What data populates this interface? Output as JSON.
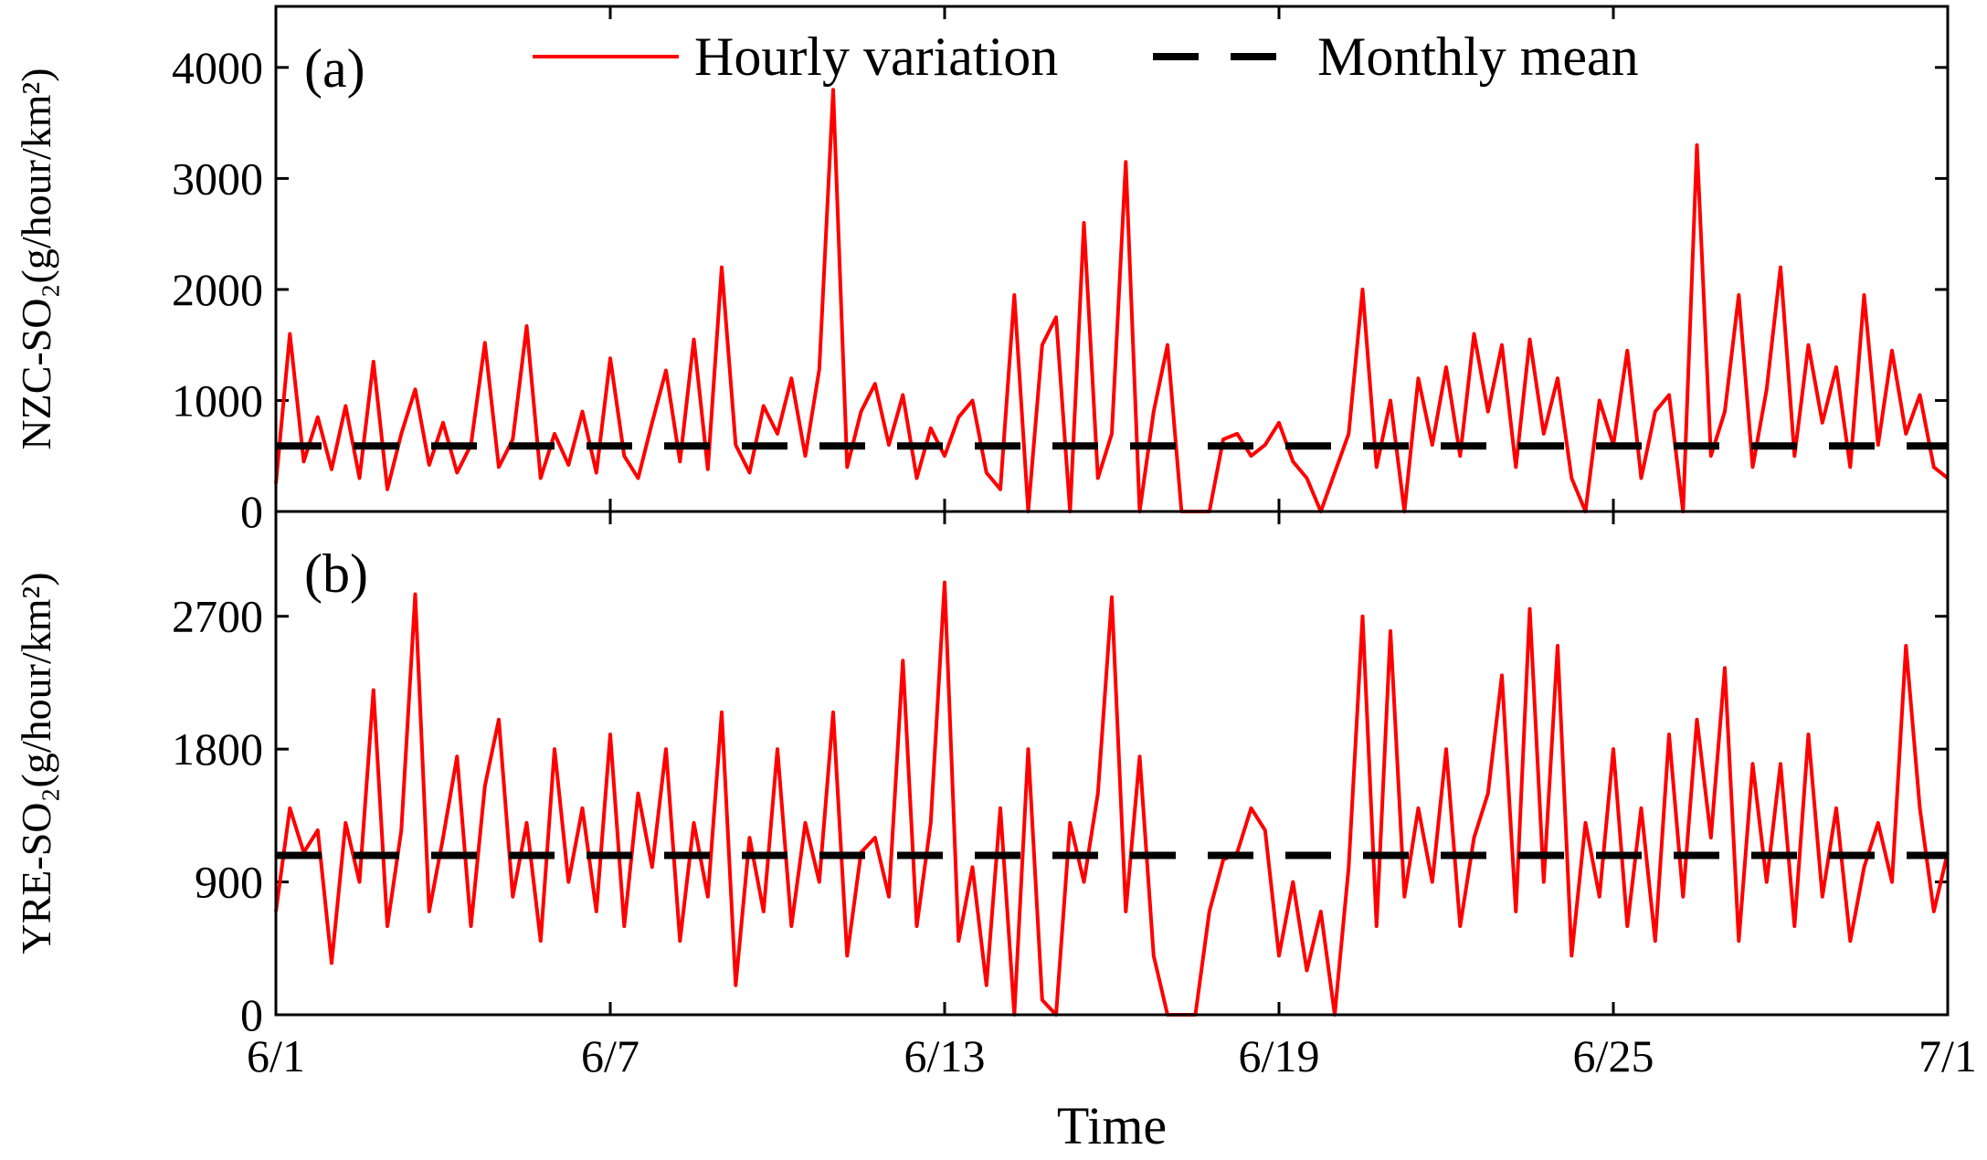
{
  "chart_data": [
    {
      "type": "line",
      "panel_label": "(a)",
      "ylabel": "NZC-SO₂(g/hour/km²)",
      "xlim": [
        0,
        30
      ],
      "ylim": [
        0,
        4550
      ],
      "yticks": [
        0,
        1000,
        2000,
        3000,
        4000
      ],
      "x": [
        0,
        0.25,
        0.5,
        0.75,
        1,
        1.25,
        1.5,
        1.75,
        2,
        2.25,
        2.5,
        2.75,
        3,
        3.25,
        3.5,
        3.75,
        4,
        4.25,
        4.5,
        4.75,
        5,
        5.25,
        5.5,
        5.75,
        6,
        6.25,
        6.5,
        6.75,
        7,
        7.25,
        7.5,
        7.75,
        8,
        8.25,
        8.5,
        8.75,
        9,
        9.25,
        9.5,
        9.75,
        10,
        10.25,
        10.5,
        10.75,
        11,
        11.25,
        11.5,
        11.75,
        12,
        12.25,
        12.5,
        12.75,
        13,
        13.25,
        13.5,
        13.75,
        14,
        14.25,
        14.5,
        14.75,
        15,
        15.25,
        15.5,
        15.75,
        16,
        16.25,
        16.5,
        16.75,
        17,
        17.25,
        17.5,
        17.75,
        18,
        18.25,
        18.5,
        18.75,
        19,
        19.25,
        19.5,
        19.75,
        20,
        20.25,
        20.5,
        20.75,
        21,
        21.25,
        21.5,
        21.75,
        22,
        22.25,
        22.5,
        22.75,
        23,
        23.25,
        23.5,
        23.75,
        24,
        24.25,
        24.5,
        24.75,
        25,
        25.25,
        25.5,
        25.75,
        26,
        26.25,
        26.5,
        26.75,
        27,
        27.25,
        27.5,
        27.75,
        28,
        28.25,
        28.5,
        28.75,
        29,
        29.25,
        29.5,
        29.75,
        30
      ],
      "series": [
        {
          "name": "Hourly variation",
          "color": "#ff0000",
          "values": [
            250,
            1600,
            450,
            850,
            380,
            950,
            300,
            1350,
            200,
            700,
            1100,
            420,
            800,
            350,
            600,
            1520,
            400,
            650,
            1670,
            300,
            700,
            420,
            900,
            350,
            1380,
            500,
            300,
            800,
            1270,
            450,
            1550,
            380,
            2200,
            600,
            350,
            950,
            700,
            1200,
            500,
            1280,
            3800,
            400,
            900,
            1150,
            600,
            1050,
            300,
            750,
            500,
            850,
            1000,
            350,
            200,
            1950,
            0,
            1500,
            1750,
            0,
            2600,
            300,
            700,
            3150,
            0,
            900,
            1500,
            0,
            0,
            0,
            650,
            700,
            500,
            600,
            800,
            450,
            300,
            0,
            350,
            700,
            2000,
            400,
            1000,
            0,
            1200,
            600,
            1300,
            500,
            1600,
            900,
            1500,
            400,
            1550,
            700,
            1200,
            300,
            0,
            1000,
            600,
            1450,
            300,
            900,
            1050,
            0,
            3300,
            500,
            900,
            1950,
            400,
            1100,
            2200,
            500,
            1500,
            800,
            1300,
            400,
            1950,
            600,
            1450,
            700,
            1050,
            400,
            300
          ]
        }
      ],
      "reference_lines": [
        {
          "name": "Monthly mean",
          "color": "#000000",
          "value": 590
        }
      ]
    },
    {
      "type": "line",
      "panel_label": "(b)",
      "ylabel": "YRE-SO₂(g/hour/km²)",
      "xlabel": "Time",
      "xlim": [
        0,
        30
      ],
      "ylim": [
        0,
        3410
      ],
      "yticks": [
        0,
        900,
        1800,
        2700
      ],
      "xticks": [
        {
          "value": 0,
          "label": "6/1"
        },
        {
          "value": 6,
          "label": "6/7"
        },
        {
          "value": 12,
          "label": "6/13"
        },
        {
          "value": 18,
          "label": "6/19"
        },
        {
          "value": 24,
          "label": "6/25"
        },
        {
          "value": 30,
          "label": "7/1"
        }
      ],
      "x": [
        0,
        0.25,
        0.5,
        0.75,
        1,
        1.25,
        1.5,
        1.75,
        2,
        2.25,
        2.5,
        2.75,
        3,
        3.25,
        3.5,
        3.75,
        4,
        4.25,
        4.5,
        4.75,
        5,
        5.25,
        5.5,
        5.75,
        6,
        6.25,
        6.5,
        6.75,
        7,
        7.25,
        7.5,
        7.75,
        8,
        8.25,
        8.5,
        8.75,
        9,
        9.25,
        9.5,
        9.75,
        10,
        10.25,
        10.5,
        10.75,
        11,
        11.25,
        11.5,
        11.75,
        12,
        12.25,
        12.5,
        12.75,
        13,
        13.25,
        13.5,
        13.75,
        14,
        14.25,
        14.5,
        14.75,
        15,
        15.25,
        15.5,
        15.75,
        16,
        16.25,
        16.5,
        16.75,
        17,
        17.25,
        17.5,
        17.75,
        18,
        18.25,
        18.5,
        18.75,
        19,
        19.25,
        19.5,
        19.75,
        20,
        20.25,
        20.5,
        20.75,
        21,
        21.25,
        21.5,
        21.75,
        22,
        22.25,
        22.5,
        22.75,
        23,
        23.25,
        23.5,
        23.75,
        24,
        24.25,
        24.5,
        24.75,
        25,
        25.25,
        25.5,
        25.75,
        26,
        26.25,
        26.5,
        26.75,
        27,
        27.25,
        27.5,
        27.75,
        28,
        28.25,
        28.5,
        28.75,
        29,
        29.25,
        29.5,
        29.75,
        30
      ],
      "series": [
        {
          "color": "#ff0000",
          "values": [
            700,
            1400,
            1100,
            1250,
            350,
            1300,
            900,
            2200,
            600,
            1250,
            2850,
            700,
            1200,
            1750,
            600,
            1550,
            2000,
            800,
            1300,
            500,
            1800,
            900,
            1400,
            700,
            1900,
            600,
            1500,
            1000,
            1800,
            500,
            1300,
            800,
            2050,
            200,
            1200,
            700,
            1800,
            600,
            1300,
            900,
            2050,
            400,
            1100,
            1200,
            800,
            2400,
            600,
            1300,
            2930,
            500,
            1000,
            200,
            1400,
            0,
            1800,
            100,
            0,
            1300,
            900,
            1500,
            2830,
            700,
            1750,
            400,
            0,
            0,
            0,
            700,
            1050,
            1100,
            1400,
            1250,
            400,
            900,
            300,
            700,
            0,
            1000,
            2700,
            600,
            2600,
            800,
            1400,
            900,
            1800,
            600,
            1200,
            1500,
            2300,
            700,
            2750,
            900,
            2500,
            400,
            1300,
            800,
            1800,
            600,
            1400,
            500,
            1900,
            800,
            2000,
            1200,
            2350,
            500,
            1700,
            900,
            1700,
            600,
            1900,
            800,
            1400,
            500,
            1000,
            1300,
            900,
            2500,
            1400,
            700,
            1100
          ]
        }
      ],
      "reference_lines": [
        {
          "color": "#000000",
          "value": 1080
        }
      ]
    }
  ]
}
